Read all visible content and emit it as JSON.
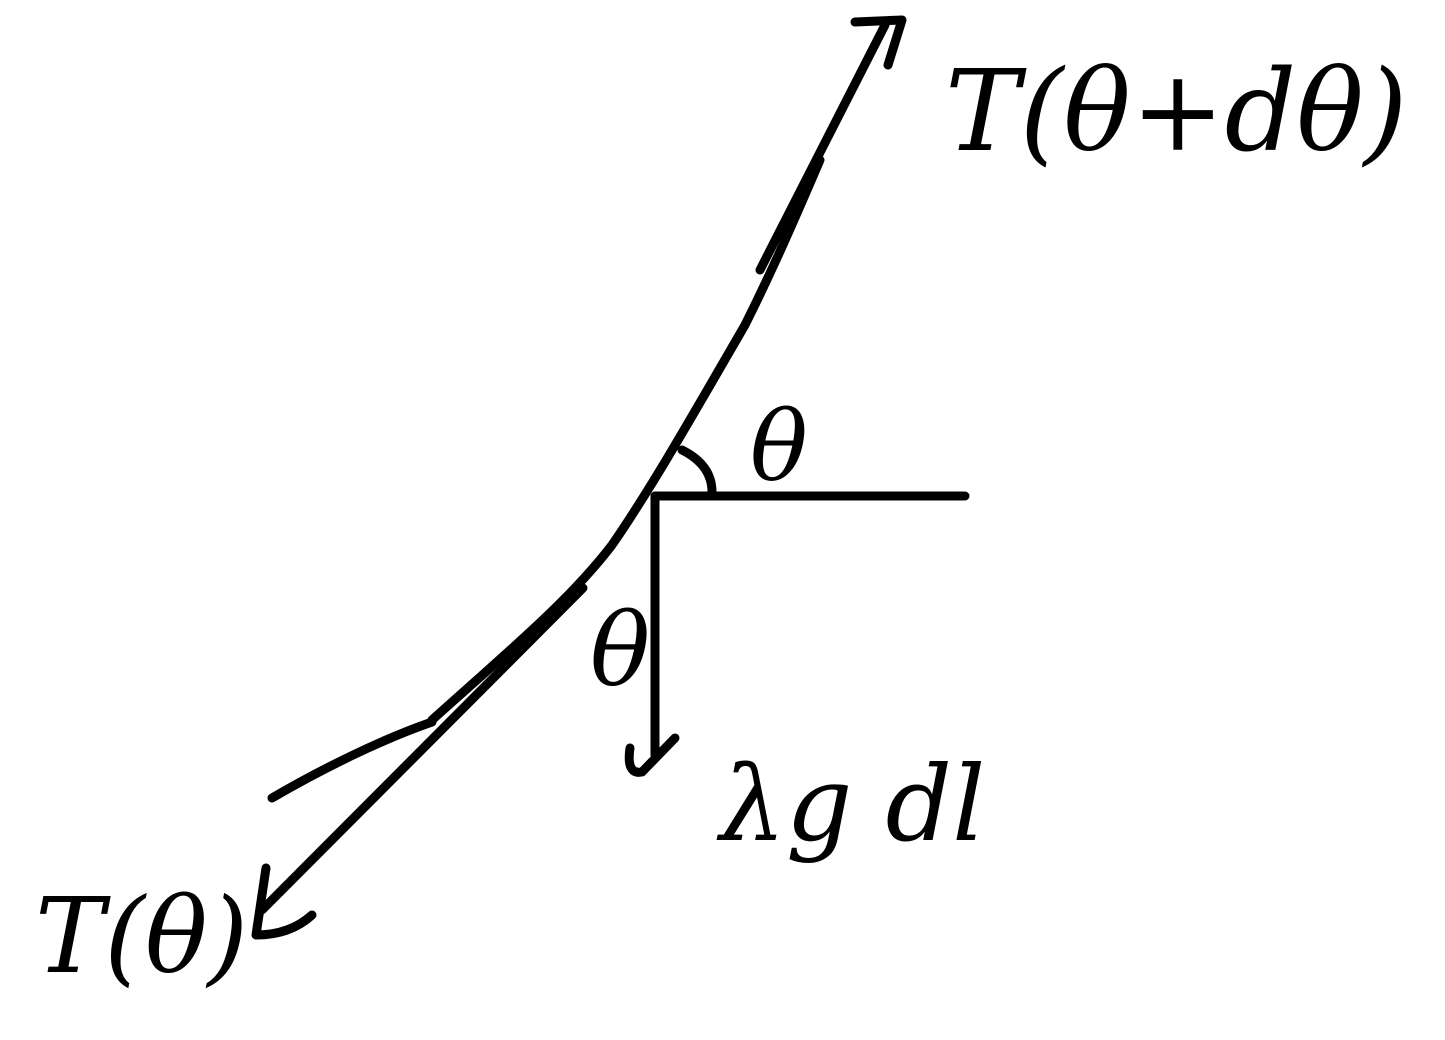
{
  "diagram": {
    "labels": {
      "tension_top": "T(θ+dθ)",
      "tension_bottom": "T(θ)",
      "angle_horizontal": "θ",
      "angle_vertical": "θ",
      "weight": "λg dl"
    },
    "colors": {
      "ink": "#000000",
      "background": "#ffffff"
    }
  }
}
